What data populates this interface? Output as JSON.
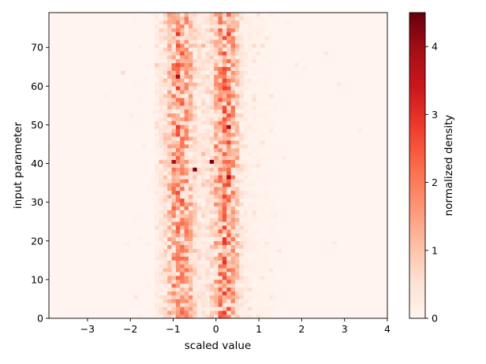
{
  "chart_data": {
    "type": "heatmap",
    "title": "",
    "xlabel": "scaled value",
    "ylabel": "input parameter",
    "colorbar_label": "normalized density",
    "colormap": [
      "#fff5f0",
      "#fee0d2",
      "#fcbba1",
      "#fc9272",
      "#fb6a4a",
      "#ef3b2c",
      "#cb181d",
      "#a50f15",
      "#67000d"
    ],
    "xlim": [
      -3.9,
      4.0
    ],
    "ylim": [
      0,
      79
    ],
    "clim": [
      0,
      4.5
    ],
    "x_ticks": [
      -3,
      -2,
      -1,
      0,
      1,
      2,
      3,
      4
    ],
    "x_tick_labels": [
      "−3",
      "−2",
      "−1",
      "0",
      "1",
      "2",
      "3",
      "4"
    ],
    "y_ticks": [
      0,
      10,
      20,
      30,
      40,
      50,
      60,
      70
    ],
    "y_tick_labels": [
      "0",
      "10",
      "20",
      "30",
      "40",
      "50",
      "60",
      "70"
    ],
    "colorbar_ticks": [
      0,
      1,
      2,
      3,
      4
    ],
    "colorbar_tick_labels": [
      "0",
      "1",
      "2",
      "3",
      "4"
    ],
    "bins": {
      "x_count": 80,
      "y_count": 79
    },
    "density_profile": {
      "description_of_bands": "two dense vertical bands of high density",
      "bands": [
        {
          "center": -0.85,
          "width": 0.22,
          "peak_density": 1.4
        },
        {
          "center": 0.22,
          "width": 0.2,
          "peak_density": 1.5
        }
      ],
      "background_density": 0.02,
      "max_density": 4.5
    }
  }
}
